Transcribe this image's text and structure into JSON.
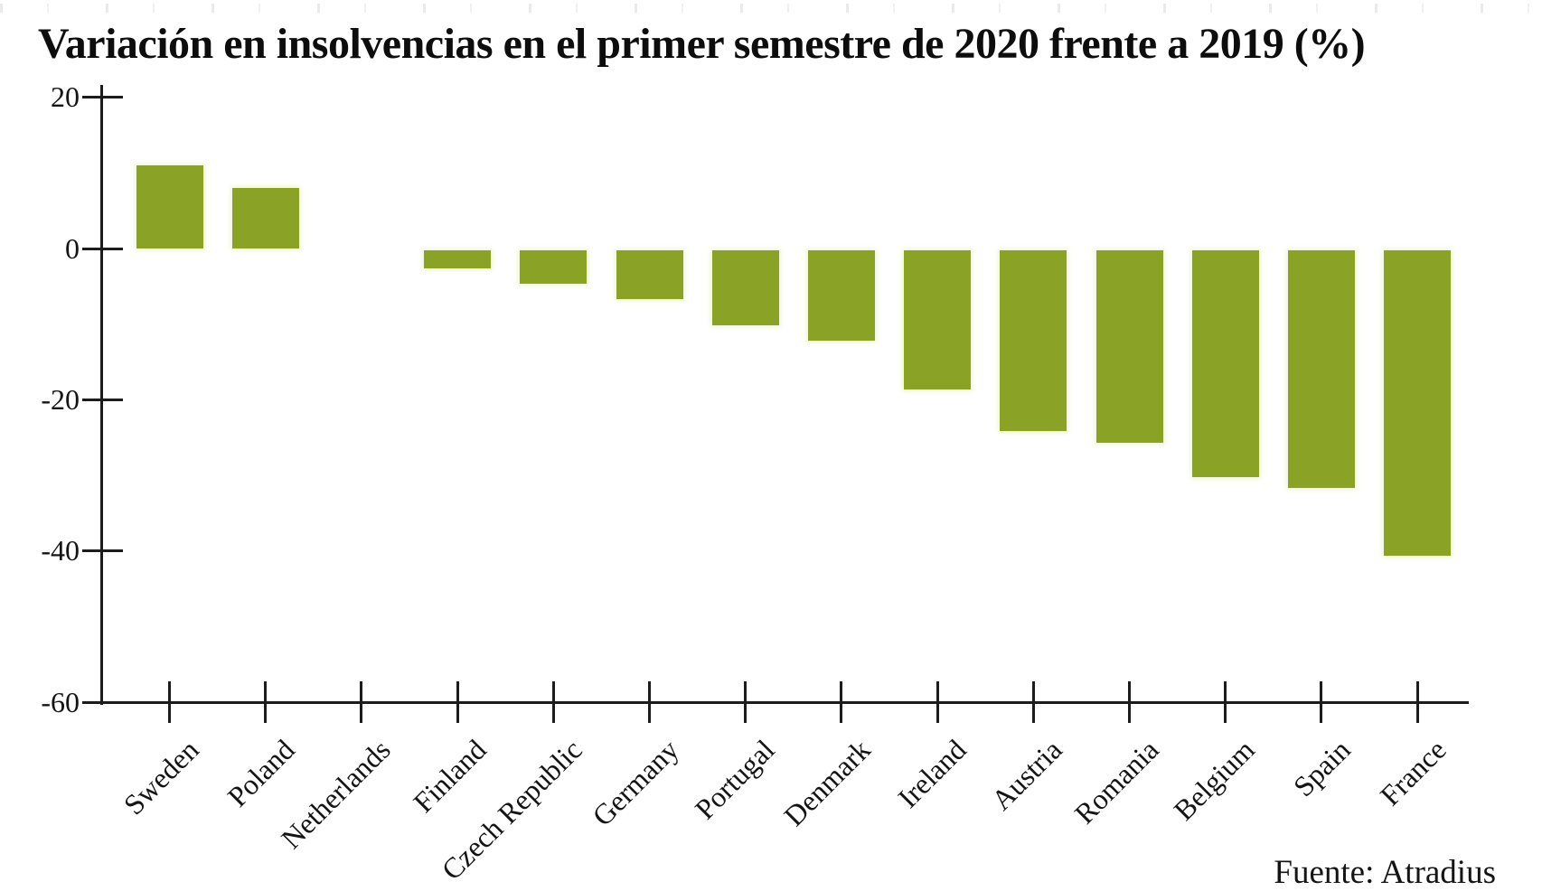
{
  "title": "Variación en insolvencias en el primer semestre de 2020 frente a 2019 (%)",
  "source": "Fuente: Atradius",
  "colors": {
    "bar": "#8aa226",
    "axis": "#1c1c1c",
    "text": "#141414",
    "background": "#ffffff",
    "halo": "#f0f6cf"
  },
  "chart_data": {
    "type": "bar",
    "title": "Variación en insolvencias en el primer semestre de 2020 frente a 2019 (%)",
    "categories": [
      "Sweden",
      "Poland",
      "Netherlands",
      "Finland",
      "Czech Republic",
      "Germany",
      "Portugal",
      "Denmark",
      "Ireland",
      "Austria",
      "Romania",
      "Belgium",
      "Spain",
      "France"
    ],
    "values": [
      11,
      8,
      0,
      -2.5,
      -4.5,
      -6.5,
      -10,
      -12,
      -18.5,
      -24,
      -25.5,
      -30,
      -31.5,
      -40.5
    ],
    "xlabel": "",
    "ylabel": "",
    "ylim": [
      -60,
      20
    ],
    "yticks": [
      20,
      0,
      -20,
      -40,
      -60
    ],
    "grid": false,
    "legend": "none",
    "bar_color": "#8aa226",
    "source": "Fuente: Atradius"
  }
}
